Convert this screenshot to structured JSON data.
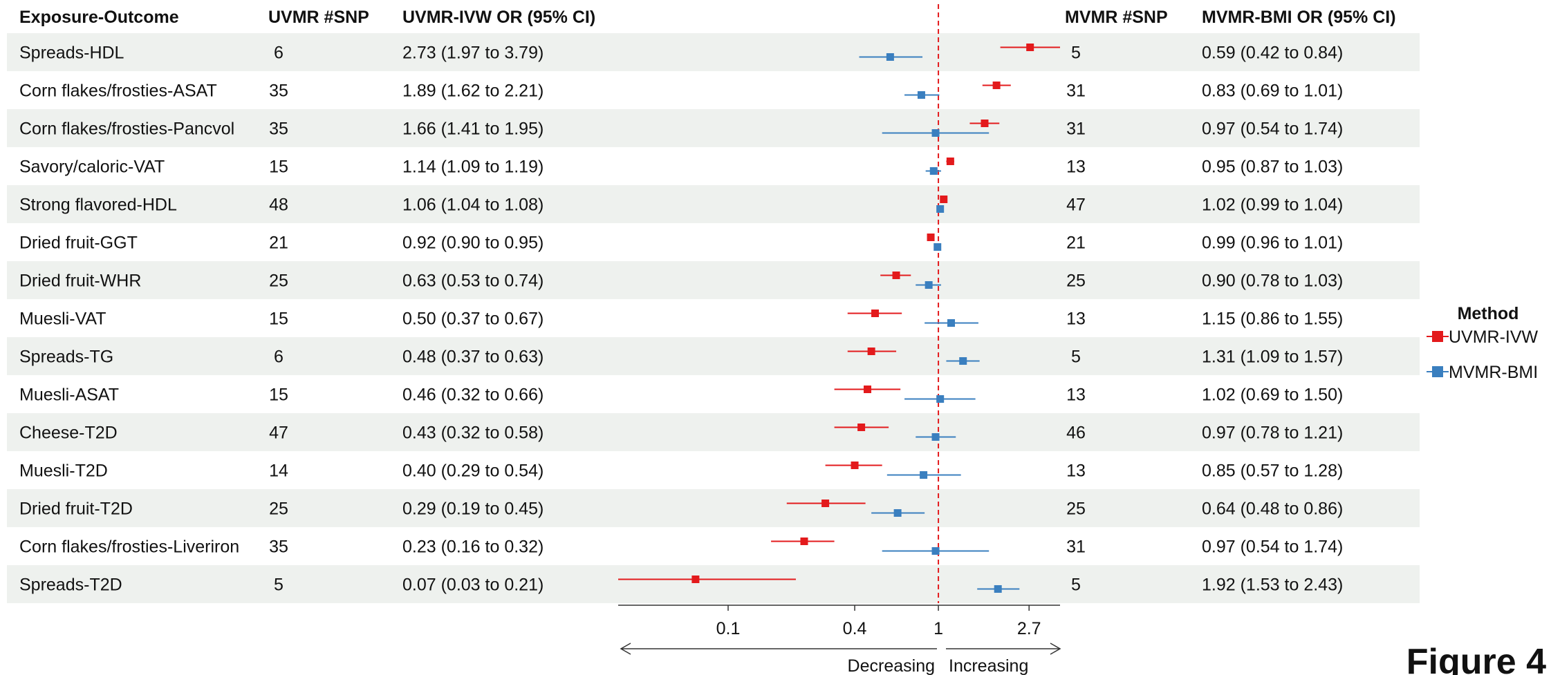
{
  "chart_data": {
    "type": "forest",
    "columns": {
      "exposure_outcome": "Exposure-Outcome",
      "uvmr_snp": "UVMR #SNP",
      "uvmr_or": "UVMR-IVW OR (95% CI)",
      "mvmr_snp": "MVMR #SNP",
      "mvmr_or": "MVMR-BMI OR (95% CI)"
    },
    "rows": [
      {
        "label": "Spreads-HDL",
        "uvmr_snp": "6",
        "uvmr_text": "2.73 (1.97 to 3.79)",
        "uvmr": [
          2.73,
          1.97,
          3.79
        ],
        "mvmr_snp": "5",
        "mvmr_text": "0.59 (0.42 to 0.84)",
        "mvmr": [
          0.59,
          0.42,
          0.84
        ]
      },
      {
        "label": "Corn flakes/frosties-ASAT",
        "uvmr_snp": "35",
        "uvmr_text": "1.89 (1.62 to 2.21)",
        "uvmr": [
          1.89,
          1.62,
          2.21
        ],
        "mvmr_snp": "31",
        "mvmr_text": "0.83 (0.69 to 1.01)",
        "mvmr": [
          0.83,
          0.69,
          1.01
        ]
      },
      {
        "label": "Corn flakes/frosties-Pancvol",
        "uvmr_snp": "35",
        "uvmr_text": "1.66 (1.41 to 1.95)",
        "uvmr": [
          1.66,
          1.41,
          1.95
        ],
        "mvmr_snp": "31",
        "mvmr_text": "0.97 (0.54 to 1.74)",
        "mvmr": [
          0.97,
          0.54,
          1.74
        ]
      },
      {
        "label": "Savory/caloric-VAT",
        "uvmr_snp": "15",
        "uvmr_text": "1.14 (1.09 to 1.19)",
        "uvmr": [
          1.14,
          1.09,
          1.19
        ],
        "mvmr_snp": "13",
        "mvmr_text": "0.95 (0.87 to 1.03)",
        "mvmr": [
          0.95,
          0.87,
          1.03
        ]
      },
      {
        "label": "Strong flavored-HDL",
        "uvmr_snp": "48",
        "uvmr_text": "1.06 (1.04 to 1.08)",
        "uvmr": [
          1.06,
          1.04,
          1.08
        ],
        "mvmr_snp": "47",
        "mvmr_text": "1.02 (0.99 to 1.04)",
        "mvmr": [
          1.02,
          0.99,
          1.04
        ]
      },
      {
        "label": "Dried fruit-GGT",
        "uvmr_snp": "21",
        "uvmr_text": "0.92 (0.90 to 0.95)",
        "uvmr": [
          0.92,
          0.9,
          0.95
        ],
        "mvmr_snp": "21",
        "mvmr_text": "0.99 (0.96 to 1.01)",
        "mvmr": [
          0.99,
          0.96,
          1.01
        ]
      },
      {
        "label": "Dried fruit-WHR",
        "uvmr_snp": "25",
        "uvmr_text": "0.63 (0.53 to 0.74)",
        "uvmr": [
          0.63,
          0.53,
          0.74
        ],
        "mvmr_snp": "25",
        "mvmr_text": "0.90 (0.78 to 1.03)",
        "mvmr": [
          0.9,
          0.78,
          1.03
        ]
      },
      {
        "label": "Muesli-VAT",
        "uvmr_snp": "15",
        "uvmr_text": "0.50 (0.37 to 0.67)",
        "uvmr": [
          0.5,
          0.37,
          0.67
        ],
        "mvmr_snp": "13",
        "mvmr_text": "1.15 (0.86 to 1.55)",
        "mvmr": [
          1.15,
          0.86,
          1.55
        ]
      },
      {
        "label": "Spreads-TG",
        "uvmr_snp": "6",
        "uvmr_text": "0.48 (0.37 to 0.63)",
        "uvmr": [
          0.48,
          0.37,
          0.63
        ],
        "mvmr_snp": "5",
        "mvmr_text": "1.31 (1.09 to 1.57)",
        "mvmr": [
          1.31,
          1.09,
          1.57
        ]
      },
      {
        "label": "Muesli-ASAT",
        "uvmr_snp": "15",
        "uvmr_text": "0.46 (0.32 to 0.66)",
        "uvmr": [
          0.46,
          0.32,
          0.66
        ],
        "mvmr_snp": "13",
        "mvmr_text": "1.02 (0.69 to 1.50)",
        "mvmr": [
          1.02,
          0.69,
          1.5
        ]
      },
      {
        "label": "Cheese-T2D",
        "uvmr_snp": "47",
        "uvmr_text": "0.43 (0.32 to 0.58)",
        "uvmr": [
          0.43,
          0.32,
          0.58
        ],
        "mvmr_snp": "46",
        "mvmr_text": "0.97 (0.78 to 1.21)",
        "mvmr": [
          0.97,
          0.78,
          1.21
        ]
      },
      {
        "label": "Muesli-T2D",
        "uvmr_snp": "14",
        "uvmr_text": "0.40 (0.29 to 0.54)",
        "uvmr": [
          0.4,
          0.29,
          0.54
        ],
        "mvmr_snp": "13",
        "mvmr_text": "0.85 (0.57 to 1.28)",
        "mvmr": [
          0.85,
          0.57,
          1.28
        ]
      },
      {
        "label": "Dried fruit-T2D",
        "uvmr_snp": "25",
        "uvmr_text": "0.29 (0.19 to 0.45)",
        "uvmr": [
          0.29,
          0.19,
          0.45
        ],
        "mvmr_snp": "25",
        "mvmr_text": "0.64 (0.48 to 0.86)",
        "mvmr": [
          0.64,
          0.48,
          0.86
        ]
      },
      {
        "label": "Corn flakes/frosties-Liveriron",
        "uvmr_snp": "35",
        "uvmr_text": "0.23 (0.16 to 0.32)",
        "uvmr": [
          0.23,
          0.16,
          0.32
        ],
        "mvmr_snp": "31",
        "mvmr_text": "0.97 (0.54 to 1.74)",
        "mvmr": [
          0.97,
          0.54,
          1.74
        ]
      },
      {
        "label": "Spreads-T2D",
        "uvmr_snp": "5",
        "uvmr_text": "0.07 (0.03 to 0.21)",
        "uvmr": [
          0.07,
          0.03,
          0.21
        ],
        "mvmr_snp": "5",
        "mvmr_text": "1.92 (1.53 to 2.43)",
        "mvmr": [
          1.92,
          1.53,
          2.43
        ]
      }
    ],
    "x_axis": {
      "scale": "log",
      "ticks": [
        0.1,
        0.4,
        1,
        2.7
      ],
      "tick_labels": [
        "0.1",
        "0.4",
        "1",
        "2.7"
      ],
      "range": [
        0.03,
        3.79
      ],
      "reference_line": 1
    },
    "direction_labels": {
      "left": "Decreasing",
      "right": "Increasing"
    },
    "legend": {
      "title": "Method",
      "position": "right",
      "entries": [
        {
          "name": "UVMR-IVW",
          "color": "#e31a1c"
        },
        {
          "name": "MVMR-BMI",
          "color": "#3a7fbf"
        }
      ]
    },
    "row_shading": "alternating",
    "figure_label": "Figure 4"
  },
  "colors": {
    "uvmr": "#e31a1c",
    "mvmr": "#3a7fbf",
    "stripe": "#eef1ee",
    "ref_line": "#e31a1c"
  }
}
